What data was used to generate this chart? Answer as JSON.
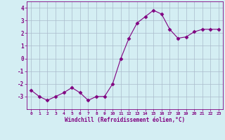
{
  "x": [
    0,
    1,
    2,
    3,
    4,
    5,
    6,
    7,
    8,
    9,
    10,
    11,
    12,
    13,
    14,
    15,
    16,
    17,
    18,
    19,
    20,
    21,
    22,
    23
  ],
  "y": [
    -2.5,
    -3.0,
    -3.3,
    -3.0,
    -2.7,
    -2.3,
    -2.7,
    -3.3,
    -3.0,
    -3.0,
    -2.0,
    -0.0,
    1.6,
    2.8,
    3.3,
    3.8,
    3.5,
    2.3,
    1.6,
    1.7,
    2.1,
    2.3,
    2.3,
    2.3
  ],
  "line_color": "#800080",
  "marker": "D",
  "markersize": 2.5,
  "linewidth": 0.8,
  "xlabel": "Windchill (Refroidissement éolien,°C)",
  "xlim": [
    -0.5,
    23.5
  ],
  "ylim": [
    -4.0,
    4.5
  ],
  "yticks": [
    -3,
    -2,
    -1,
    0,
    1,
    2,
    3,
    4
  ],
  "xticks": [
    0,
    1,
    2,
    3,
    4,
    5,
    6,
    7,
    8,
    9,
    10,
    11,
    12,
    13,
    14,
    15,
    16,
    17,
    18,
    19,
    20,
    21,
    22,
    23
  ],
  "bg_color": "#d4eef3",
  "grid_color": "#aabbcc",
  "line_purple": "#800080"
}
